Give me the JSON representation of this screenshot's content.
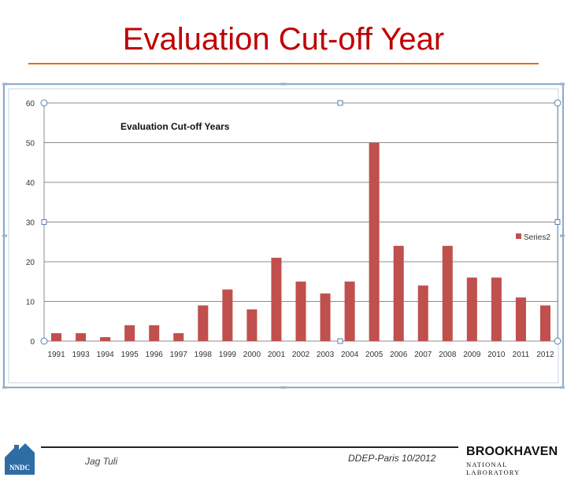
{
  "slide": {
    "title": "Evaluation Cut-off Year",
    "author": "Jag Tuli",
    "event": "DDEP-Paris 10/2012",
    "logo_left_text": "NNDC",
    "logo_right_name": "BROOKHAVEN",
    "logo_right_sub": "NATIONAL LABORATORY"
  },
  "colors": {
    "title": "#c00000",
    "title_rule": "#e36c09",
    "bar": "#c0504d",
    "nndc_logo": "#2e6da4"
  },
  "chart_data": {
    "type": "bar",
    "title": "Evaluation Cut-off Years",
    "categories": [
      "1991",
      "1993",
      "1994",
      "1995",
      "1996",
      "1997",
      "1998",
      "1999",
      "2000",
      "2001",
      "2002",
      "2003",
      "2004",
      "2005",
      "2006",
      "2007",
      "2008",
      "2009",
      "2010",
      "2011",
      "2012"
    ],
    "series": [
      {
        "name": "Series2",
        "values": [
          2,
          2,
          1,
          4,
          4,
          2,
          9,
          13,
          8,
          21,
          15,
          12,
          15,
          50,
          24,
          14,
          24,
          16,
          16,
          11,
          9
        ]
      }
    ],
    "ylim": [
      0,
      60
    ],
    "yticks": [
      0,
      10,
      20,
      30,
      40,
      50,
      60
    ],
    "xlabel": "",
    "ylabel": "",
    "grid": true,
    "legend_position": "right"
  }
}
